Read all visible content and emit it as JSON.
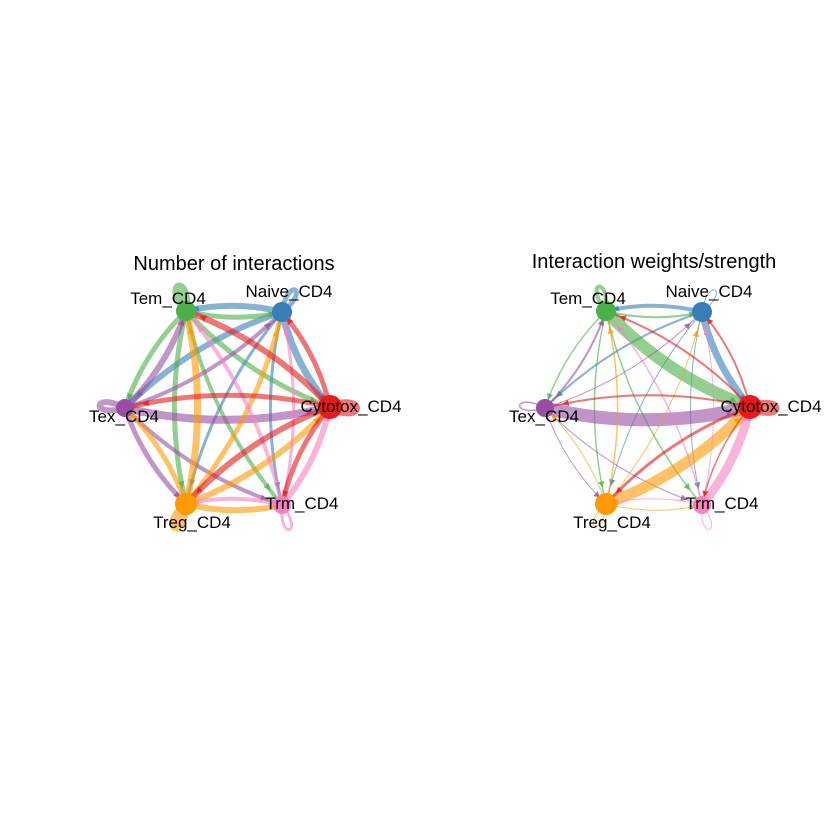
{
  "palette": {
    "Cytotox_CD4": "#e41a1c",
    "Naive_CD4": "#377eb8",
    "Tem_CD4": "#4daf4a",
    "Tex_CD4": "#984ea3",
    "Treg_CD4": "#ff9900",
    "Trm_CD4": "#f781bf"
  },
  "chart_data": [
    {
      "type": "network",
      "title": "Number of interactions",
      "nodes": [
        "Naive_CD4",
        "Tem_CD4",
        "Tex_CD4",
        "Treg_CD4",
        "Trm_CD4",
        "Cytotox_CD4"
      ],
      "node_sizes": {
        "Naive_CD4": 10,
        "Tem_CD4": 10,
        "Tex_CD4": 9,
        "Treg_CD4": 11,
        "Trm_CD4": 9,
        "Cytotox_CD4": 12
      },
      "self_loops": {
        "Naive_CD4": 5,
        "Tem_CD4": 8,
        "Tex_CD4": 6,
        "Treg_CD4": 8,
        "Trm_CD4": 3,
        "Cytotox_CD4": 9
      },
      "edges": [
        {
          "source": "Naive_CD4",
          "target": "Tem_CD4",
          "weight": 6
        },
        {
          "source": "Naive_CD4",
          "target": "Tex_CD4",
          "weight": 6
        },
        {
          "source": "Naive_CD4",
          "target": "Treg_CD4",
          "weight": 3
        },
        {
          "source": "Naive_CD4",
          "target": "Trm_CD4",
          "weight": 3
        },
        {
          "source": "Naive_CD4",
          "target": "Cytotox_CD4",
          "weight": 7
        },
        {
          "source": "Tem_CD4",
          "target": "Naive_CD4",
          "weight": 5
        },
        {
          "source": "Tem_CD4",
          "target": "Tex_CD4",
          "weight": 5
        },
        {
          "source": "Tem_CD4",
          "target": "Treg_CD4",
          "weight": 5
        },
        {
          "source": "Tem_CD4",
          "target": "Trm_CD4",
          "weight": 4
        },
        {
          "source": "Tem_CD4",
          "target": "Cytotox_CD4",
          "weight": 5
        },
        {
          "source": "Tex_CD4",
          "target": "Tem_CD4",
          "weight": 6
        },
        {
          "source": "Tex_CD4",
          "target": "Naive_CD4",
          "weight": 4
        },
        {
          "source": "Tex_CD4",
          "target": "Treg_CD4",
          "weight": 5
        },
        {
          "source": "Tex_CD4",
          "target": "Trm_CD4",
          "weight": 4
        },
        {
          "source": "Tex_CD4",
          "target": "Cytotox_CD4",
          "weight": 8
        },
        {
          "source": "Treg_CD4",
          "target": "Tem_CD4",
          "weight": 7
        },
        {
          "source": "Treg_CD4",
          "target": "Naive_CD4",
          "weight": 5
        },
        {
          "source": "Treg_CD4",
          "target": "Tex_CD4",
          "weight": 5
        },
        {
          "source": "Treg_CD4",
          "target": "Trm_CD4",
          "weight": 6
        },
        {
          "source": "Treg_CD4",
          "target": "Cytotox_CD4",
          "weight": 6
        },
        {
          "source": "Trm_CD4",
          "target": "Tem_CD4",
          "weight": 4
        },
        {
          "source": "Trm_CD4",
          "target": "Naive_CD4",
          "weight": 3
        },
        {
          "source": "Trm_CD4",
          "target": "Treg_CD4",
          "weight": 4
        },
        {
          "source": "Trm_CD4",
          "target": "Cytotox_CD4",
          "weight": 6
        },
        {
          "source": "Cytotox_CD4",
          "target": "Tem_CD4",
          "weight": 6
        },
        {
          "source": "Cytotox_CD4",
          "target": "Naive_CD4",
          "weight": 5
        },
        {
          "source": "Cytotox_CD4",
          "target": "Tex_CD4",
          "weight": 5
        },
        {
          "source": "Cytotox_CD4",
          "target": "Treg_CD4",
          "weight": 6
        },
        {
          "source": "Cytotox_CD4",
          "target": "Trm_CD4",
          "weight": 5
        }
      ]
    },
    {
      "type": "network",
      "title": "Interaction weights/strength",
      "nodes": [
        "Naive_CD4",
        "Tem_CD4",
        "Tex_CD4",
        "Treg_CD4",
        "Trm_CD4",
        "Cytotox_CD4"
      ],
      "node_sizes": {
        "Naive_CD4": 10,
        "Tem_CD4": 10,
        "Tex_CD4": 9,
        "Treg_CD4": 11,
        "Trm_CD4": 9,
        "Cytotox_CD4": 12
      },
      "self_loops": {
        "Naive_CD4": 1,
        "Tem_CD4": 4,
        "Tex_CD4": 1.5,
        "Treg_CD4": 1,
        "Trm_CD4": 1,
        "Cytotox_CD4": 8
      },
      "edges": [
        {
          "source": "Naive_CD4",
          "target": "Tem_CD4",
          "weight": 4
        },
        {
          "source": "Naive_CD4",
          "target": "Tex_CD4",
          "weight": 2
        },
        {
          "source": "Naive_CD4",
          "target": "Treg_CD4",
          "weight": 1
        },
        {
          "source": "Naive_CD4",
          "target": "Trm_CD4",
          "weight": 1
        },
        {
          "source": "Naive_CD4",
          "target": "Cytotox_CD4",
          "weight": 7
        },
        {
          "source": "Tem_CD4",
          "target": "Naive_CD4",
          "weight": 2
        },
        {
          "source": "Tem_CD4",
          "target": "Tex_CD4",
          "weight": 1.5
        },
        {
          "source": "Tem_CD4",
          "target": "Treg_CD4",
          "weight": 1.5
        },
        {
          "source": "Tem_CD4",
          "target": "Trm_CD4",
          "weight": 1.5
        },
        {
          "source": "Tem_CD4",
          "target": "Cytotox_CD4",
          "weight": 12
        },
        {
          "source": "Tex_CD4",
          "target": "Tem_CD4",
          "weight": 2
        },
        {
          "source": "Tex_CD4",
          "target": "Naive_CD4",
          "weight": 1
        },
        {
          "source": "Tex_CD4",
          "target": "Treg_CD4",
          "weight": 1
        },
        {
          "source": "Tex_CD4",
          "target": "Trm_CD4",
          "weight": 1
        },
        {
          "source": "Tex_CD4",
          "target": "Cytotox_CD4",
          "weight": 13
        },
        {
          "source": "Treg_CD4",
          "target": "Tem_CD4",
          "weight": 1.5
        },
        {
          "source": "Treg_CD4",
          "target": "Naive_CD4",
          "weight": 1
        },
        {
          "source": "Treg_CD4",
          "target": "Tex_CD4",
          "weight": 1
        },
        {
          "source": "Treg_CD4",
          "target": "Trm_CD4",
          "weight": 1
        },
        {
          "source": "Treg_CD4",
          "target": "Cytotox_CD4",
          "weight": 11
        },
        {
          "source": "Trm_CD4",
          "target": "Tem_CD4",
          "weight": 1.5
        },
        {
          "source": "Trm_CD4",
          "target": "Naive_CD4",
          "weight": 1
        },
        {
          "source": "Trm_CD4",
          "target": "Treg_CD4",
          "weight": 1
        },
        {
          "source": "Trm_CD4",
          "target": "Cytotox_CD4",
          "weight": 9
        },
        {
          "source": "Cytotox_CD4",
          "target": "Tem_CD4",
          "weight": 2
        },
        {
          "source": "Cytotox_CD4",
          "target": "Naive_CD4",
          "weight": 2
        },
        {
          "source": "Cytotox_CD4",
          "target": "Tex_CD4",
          "weight": 2
        },
        {
          "source": "Cytotox_CD4",
          "target": "Treg_CD4",
          "weight": 3
        },
        {
          "source": "Cytotox_CD4",
          "target": "Trm_CD4",
          "weight": 1.5
        }
      ]
    }
  ]
}
